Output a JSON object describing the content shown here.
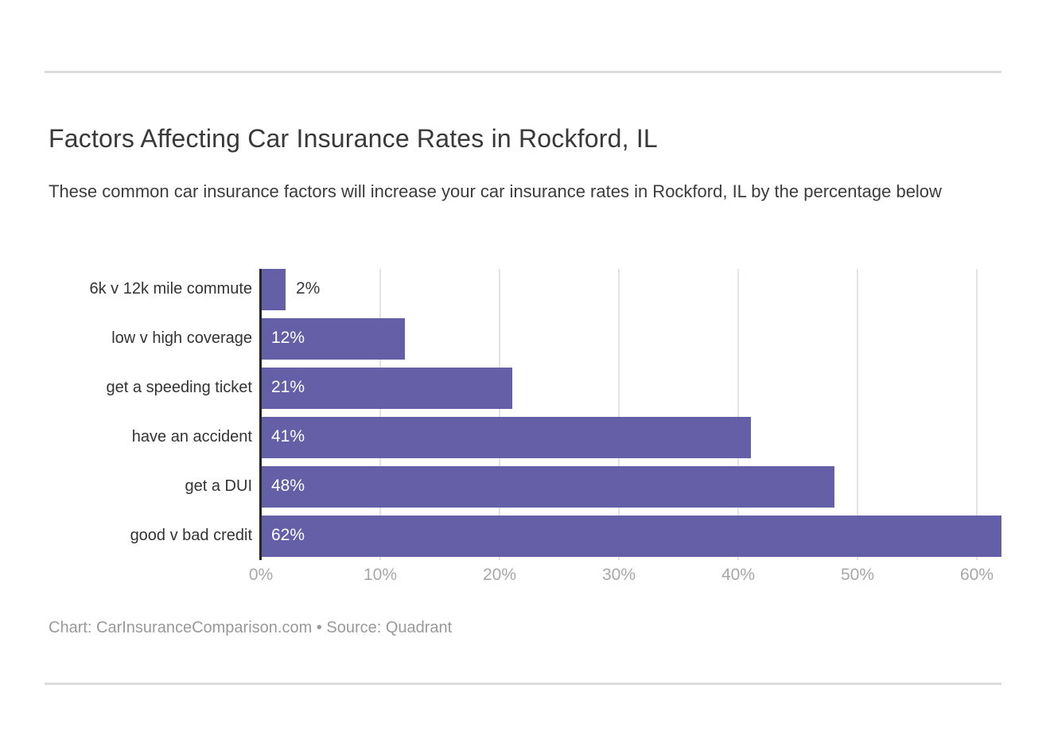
{
  "header": {
    "title": "Factors Affecting Car Insurance Rates in Rockford, IL",
    "subtitle": "These common car insurance factors will increase your car insurance rates in Rockford, IL by the percentage below"
  },
  "footer": {
    "attribution": "Chart: CarInsuranceComparison.com • Source: Quadrant"
  },
  "colors": {
    "bar": "#645fa7",
    "axis_line": "#262626",
    "gridline": "#e4e4e4",
    "title_text": "#393939",
    "subtitle_text": "#3c3c3c",
    "category_text": "#333333",
    "value_inside_text": "#ffffff",
    "value_outside_text": "#3a3a3a",
    "tick_text": "#a7a7a7",
    "footer_text": "#999999",
    "divider": "#dcdcdc"
  },
  "chart_data": {
    "type": "bar",
    "orientation": "horizontal",
    "title": "Factors Affecting Car Insurance Rates in Rockford, IL",
    "subtitle": "These common car insurance factors will increase your car insurance rates in Rockford, IL by the percentage below",
    "categories": [
      "6k v 12k mile commute",
      "low v high coverage",
      "get a speeding ticket",
      "have an accident",
      "get a DUI",
      "good v bad credit"
    ],
    "values": [
      2,
      12,
      21,
      41,
      48,
      62
    ],
    "value_labels": [
      "2%",
      "12%",
      "21%",
      "41%",
      "48%",
      "62%"
    ],
    "x_ticks": [
      0,
      10,
      20,
      30,
      40,
      50,
      60
    ],
    "x_tick_labels": [
      "0%",
      "10%",
      "20%",
      "30%",
      "40%",
      "50%",
      "60%"
    ],
    "xlim": [
      0,
      62
    ],
    "xlabel": "",
    "ylabel": "",
    "grid": true,
    "legend": false,
    "attribution": "Chart: CarInsuranceComparison.com • Source: Quadrant"
  }
}
